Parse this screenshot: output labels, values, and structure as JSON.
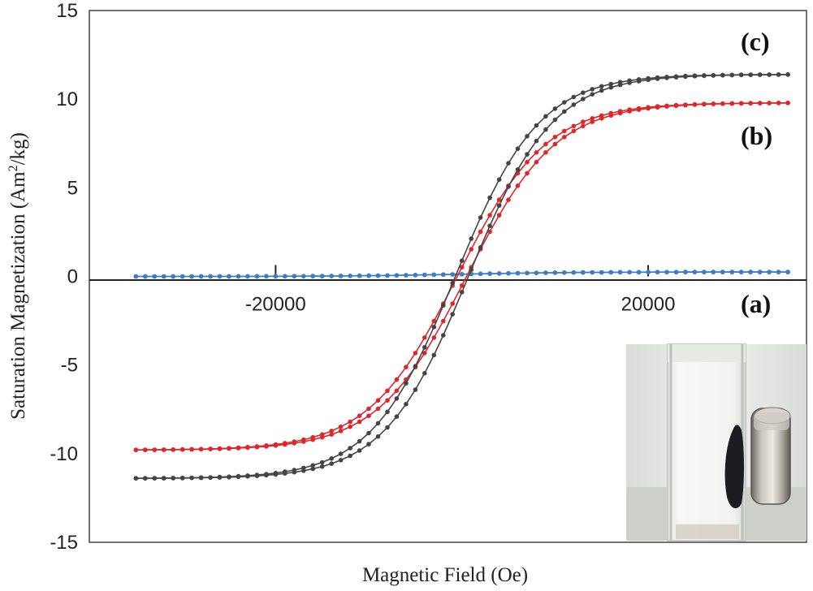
{
  "chart_data": {
    "type": "line",
    "title": "",
    "xlabel": "Magnetic Field (Oe)",
    "ylabel_main": "Saturation Magnetization (Am",
    "ylabel_sup": "2",
    "ylabel_end": "/kg)",
    "xlim": [
      -40000,
      37000
    ],
    "ylim": [
      -15,
      15
    ],
    "x_ticks": [
      -20000,
      20000
    ],
    "x_tick_labels": [
      "-20000",
      "20000"
    ],
    "y_ticks": [
      15,
      10,
      5,
      0,
      -5,
      -10,
      -15
    ],
    "y_tick_labels": [
      "15",
      "10",
      "5",
      "0",
      "-5",
      "-10",
      "-15"
    ],
    "grid": false,
    "panel_labels": [
      {
        "id": "c",
        "text": "(c)"
      },
      {
        "id": "b",
        "text": "(b)"
      },
      {
        "id": "a",
        "text": "(a)"
      }
    ],
    "series": [
      {
        "name": "(a)",
        "color": "#3a7dc9",
        "shape": "linear",
        "ms": 0.25,
        "hc": 0,
        "k": 12000,
        "branch_offset": 0
      },
      {
        "name": "(b)",
        "color": "#e0262b",
        "shape": "tanh",
        "ms": 9.8,
        "hc": 500,
        "k": 9500,
        "branch_offset": 300
      },
      {
        "name": "(c)",
        "color": "#444444",
        "shape": "tanh",
        "ms": 11.4,
        "hc": 700,
        "k": 9000,
        "branch_offset": 450
      }
    ],
    "field_range": [
      -35000,
      35000
    ],
    "points_per_branch": 70,
    "inset": {
      "description_color_bg": "#e9ebe8",
      "vial_color": "#f1f2ef",
      "particles_color": "#1c1c22",
      "magnet_color": "#b9b5ad"
    }
  }
}
